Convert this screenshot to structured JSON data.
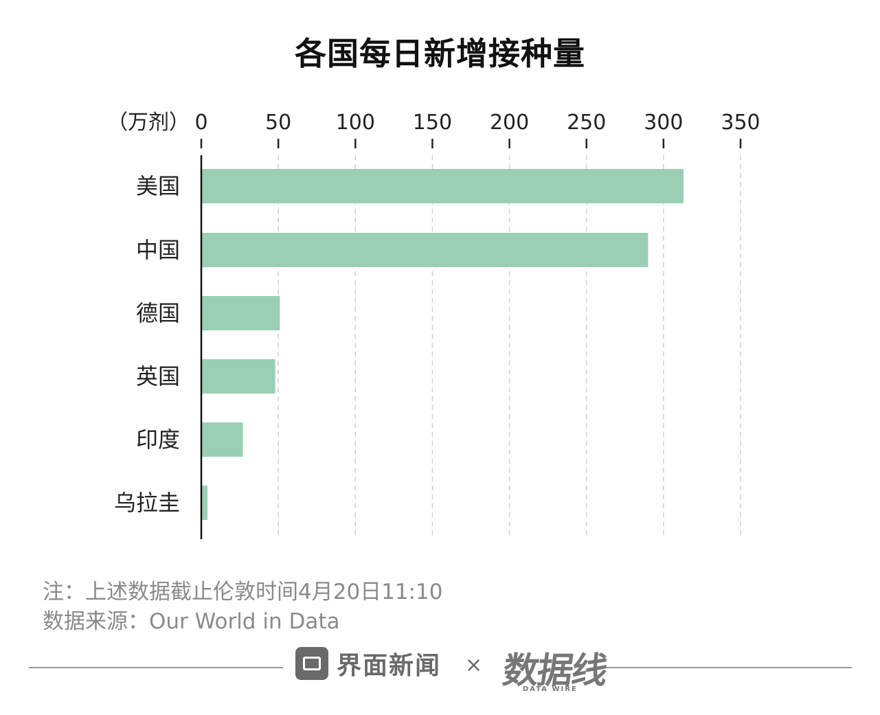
{
  "title": "各国每日新增接种量",
  "chart_data": {
    "type": "bar",
    "orientation": "horizontal",
    "unit_label": "（万剂）",
    "categories": [
      "美国",
      "中国",
      "德国",
      "英国",
      "印度",
      "乌拉圭"
    ],
    "values": [
      313,
      290,
      51,
      48,
      27,
      4
    ],
    "ticks": [
      0,
      50,
      100,
      150,
      200,
      250,
      300,
      350
    ],
    "xlim": [
      0,
      350
    ],
    "grid": true,
    "bar_color": "#9acfb4"
  },
  "notes": {
    "note": "注：上述数据截止伦敦时间4月20日11:10",
    "source": "数据来源：Our World in Data"
  },
  "footer": {
    "brand": "界面新闻",
    "separator": "×",
    "partner": "数据线",
    "partner_sub": "DATA WIRE"
  }
}
